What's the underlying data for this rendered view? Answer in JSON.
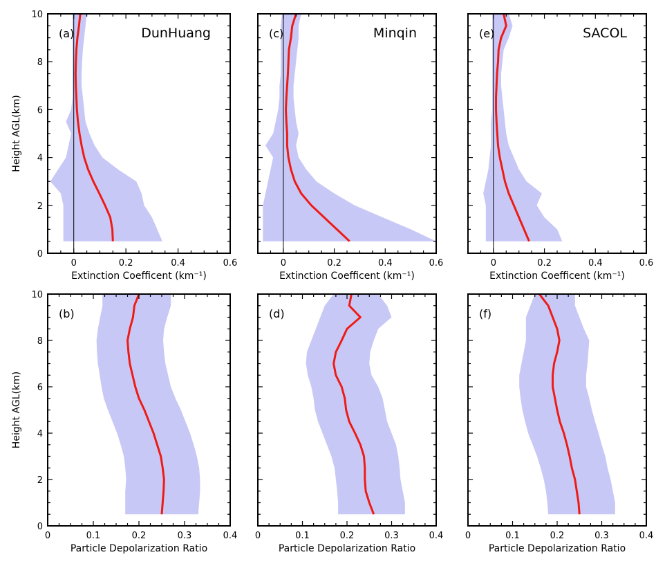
{
  "figure": {
    "colors": {
      "band": "#c8c8f7",
      "mean": "#ee1b14",
      "axis": "#000000",
      "zero_line": "#000000"
    }
  },
  "chart_data": [
    {
      "type": "line",
      "panel": "(a)",
      "site": "DunHuang",
      "xlabel": "Extinction Coefficent (km⁻¹)",
      "ylabel": "Height AGL(km)",
      "xlim": [
        -0.1,
        0.6
      ],
      "ylim": [
        0,
        10
      ],
      "xticks": [
        0,
        0.2,
        0.4,
        0.6
      ],
      "xticklabels": [
        "0",
        "0.2",
        "0.4",
        "0.6"
      ],
      "yticks": [
        0,
        2,
        4,
        6,
        8,
        10
      ],
      "yticklabels": [
        "0",
        "2",
        "4",
        "6",
        "8",
        "10"
      ],
      "zero_line": true,
      "series": [
        {
          "role": "mean",
          "y": [
            0.5,
            1.0,
            1.5,
            2.0,
            2.5,
            3.0,
            3.5,
            4.0,
            4.5,
            5.0,
            5.5,
            6.0,
            6.5,
            7.0,
            7.5,
            8.0,
            8.5,
            9.0,
            9.5,
            10.0
          ],
          "x": [
            0.15,
            0.148,
            0.14,
            0.12,
            0.098,
            0.075,
            0.055,
            0.04,
            0.03,
            0.022,
            0.016,
            0.012,
            0.01,
            0.008,
            0.007,
            0.008,
            0.01,
            0.014,
            0.02,
            0.025
          ]
        },
        {
          "role": "range",
          "y": [
            0.5,
            1.0,
            1.5,
            2.0,
            2.5,
            3.0,
            3.5,
            4.0,
            4.5,
            5.0,
            5.5,
            6.0,
            6.5,
            7.0,
            7.5,
            8.0,
            8.5,
            9.0,
            9.5,
            10.0
          ],
          "low": [
            -0.04,
            -0.04,
            -0.04,
            -0.04,
            -0.05,
            -0.09,
            -0.06,
            -0.03,
            -0.02,
            -0.01,
            -0.03,
            -0.01,
            -0.005,
            -0.005,
            -0.005,
            -0.005,
            -0.005,
            -0.005,
            -0.005,
            -0.005
          ],
          "high": [
            0.34,
            0.32,
            0.3,
            0.27,
            0.26,
            0.24,
            0.17,
            0.11,
            0.08,
            0.06,
            0.045,
            0.04,
            0.035,
            0.03,
            0.03,
            0.032,
            0.035,
            0.04,
            0.045,
            0.05
          ]
        }
      ]
    },
    {
      "type": "line",
      "panel": "(c)",
      "site": "Minqin",
      "xlabel": "Extinction Coefficent (km⁻¹)",
      "ylabel": "",
      "xlim": [
        -0.1,
        0.6
      ],
      "ylim": [
        0,
        10
      ],
      "xticks": [
        0,
        0.2,
        0.4,
        0.6
      ],
      "xticklabels": [
        "0",
        "0.2",
        "0.4",
        "0.6"
      ],
      "yticks": [
        0,
        2,
        4,
        6,
        8,
        10
      ],
      "yticklabels": [],
      "zero_line": true,
      "series": [
        {
          "role": "mean",
          "y": [
            0.5,
            1.0,
            1.5,
            2.0,
            2.5,
            3.0,
            3.5,
            4.0,
            4.5,
            5.0,
            5.5,
            6.0,
            6.5,
            7.0,
            7.5,
            8.0,
            8.5,
            9.0,
            9.5,
            10.0
          ],
          "x": [
            0.26,
            0.21,
            0.16,
            0.11,
            0.07,
            0.045,
            0.03,
            0.02,
            0.015,
            0.015,
            0.012,
            0.01,
            0.012,
            0.015,
            0.018,
            0.02,
            0.022,
            0.03,
            0.035,
            0.05
          ]
        },
        {
          "role": "range",
          "y": [
            0.5,
            1.0,
            1.5,
            2.0,
            2.5,
            3.0,
            3.5,
            4.0,
            4.5,
            5.0,
            5.5,
            6.0,
            6.5,
            7.0,
            7.5,
            8.0,
            8.5,
            9.0,
            9.5,
            10.0
          ],
          "low": [
            -0.08,
            -0.08,
            -0.08,
            -0.08,
            -0.07,
            -0.06,
            -0.05,
            -0.04,
            -0.07,
            -0.04,
            -0.03,
            -0.02,
            -0.015,
            -0.015,
            -0.01,
            -0.01,
            -0.01,
            -0.01,
            -0.01,
            -0.005
          ],
          "high": [
            0.6,
            0.5,
            0.39,
            0.28,
            0.2,
            0.13,
            0.09,
            0.06,
            0.05,
            0.06,
            0.05,
            0.045,
            0.04,
            0.04,
            0.045,
            0.05,
            0.055,
            0.06,
            0.06,
            0.07
          ]
        }
      ]
    },
    {
      "type": "line",
      "panel": "(e)",
      "site": "SACOL",
      "xlabel": "Extinction Coefficent (km⁻¹)",
      "ylabel": "",
      "xlim": [
        -0.1,
        0.6
      ],
      "ylim": [
        0,
        10
      ],
      "xticks": [
        0,
        0.2,
        0.4,
        0.6
      ],
      "xticklabels": [
        "0",
        "0.2",
        "0.4",
        "0.6"
      ],
      "yticks": [
        0,
        2,
        4,
        6,
        8,
        10
      ],
      "yticklabels": [],
      "zero_line": true,
      "series": [
        {
          "role": "mean",
          "y": [
            0.5,
            1.0,
            1.5,
            2.0,
            2.5,
            3.0,
            3.5,
            4.0,
            4.5,
            5.0,
            5.5,
            6.0,
            6.5,
            7.0,
            7.5,
            8.0,
            8.5,
            9.0,
            9.5,
            10.0
          ],
          "x": [
            0.14,
            0.12,
            0.1,
            0.08,
            0.06,
            0.045,
            0.035,
            0.025,
            0.018,
            0.015,
            0.012,
            0.01,
            0.01,
            0.012,
            0.014,
            0.018,
            0.02,
            0.03,
            0.05,
            0.04
          ]
        },
        {
          "role": "range",
          "y": [
            0.5,
            1.0,
            1.5,
            2.0,
            2.5,
            3.0,
            3.5,
            4.0,
            4.5,
            5.0,
            5.5,
            6.0,
            6.5,
            7.0,
            7.5,
            8.0,
            8.5,
            9.0,
            9.5,
            10.0
          ],
          "low": [
            -0.03,
            -0.03,
            -0.03,
            -0.03,
            -0.04,
            -0.03,
            -0.02,
            -0.015,
            -0.01,
            -0.01,
            -0.01,
            -0.005,
            -0.005,
            -0.005,
            -0.005,
            -0.005,
            -0.005,
            -0.005,
            -0.005,
            -0.005
          ],
          "high": [
            0.27,
            0.25,
            0.2,
            0.17,
            0.19,
            0.13,
            0.1,
            0.08,
            0.06,
            0.05,
            0.045,
            0.04,
            0.035,
            0.03,
            0.03,
            0.035,
            0.04,
            0.06,
            0.075,
            0.06
          ]
        }
      ]
    },
    {
      "type": "line",
      "panel": "(b)",
      "site": "",
      "xlabel": "Particle Depolarization Ratio",
      "ylabel": "Height AGL(km)",
      "xlim": [
        0,
        0.4
      ],
      "ylim": [
        0,
        10
      ],
      "xticks": [
        0,
        0.1,
        0.2,
        0.3,
        0.4
      ],
      "xticklabels": [
        "0",
        "0.1",
        "0.2",
        "0.3",
        "0.4"
      ],
      "yticks": [
        0,
        2,
        4,
        6,
        8,
        10
      ],
      "yticklabels": [
        "0",
        "2",
        "4",
        "6",
        "8",
        "10"
      ],
      "zero_line": false,
      "series": [
        {
          "role": "mean",
          "y": [
            0.5,
            1.0,
            1.5,
            2.0,
            2.5,
            3.0,
            3.5,
            4.0,
            4.5,
            5.0,
            5.5,
            6.0,
            6.5,
            7.0,
            7.5,
            8.0,
            8.5,
            9.0,
            9.5,
            10.0
          ],
          "x": [
            0.25,
            0.252,
            0.254,
            0.255,
            0.252,
            0.248,
            0.24,
            0.232,
            0.222,
            0.212,
            0.2,
            0.192,
            0.186,
            0.18,
            0.177,
            0.175,
            0.18,
            0.187,
            0.19,
            0.2
          ]
        },
        {
          "role": "range",
          "y": [
            0.5,
            1.0,
            1.5,
            2.0,
            2.5,
            3.0,
            3.5,
            4.0,
            4.5,
            5.0,
            5.5,
            6.0,
            6.5,
            7.0,
            7.5,
            8.0,
            8.5,
            9.0,
            9.5,
            10.0
          ],
          "low": [
            0.17,
            0.17,
            0.17,
            0.172,
            0.17,
            0.167,
            0.16,
            0.152,
            0.142,
            0.132,
            0.123,
            0.118,
            0.114,
            0.11,
            0.108,
            0.107,
            0.11,
            0.115,
            0.12,
            0.12
          ],
          "high": [
            0.33,
            0.332,
            0.334,
            0.334,
            0.332,
            0.327,
            0.32,
            0.312,
            0.302,
            0.292,
            0.28,
            0.27,
            0.264,
            0.258,
            0.255,
            0.253,
            0.255,
            0.262,
            0.27,
            0.27
          ]
        }
      ]
    },
    {
      "type": "line",
      "panel": "(d)",
      "site": "",
      "xlabel": "Particle Depolarization Ratio",
      "ylabel": "",
      "xlim": [
        0,
        0.4
      ],
      "ylim": [
        0,
        10
      ],
      "xticks": [
        0,
        0.1,
        0.2,
        0.3,
        0.4
      ],
      "xticklabels": [
        "0",
        "0.1",
        "0.2",
        "0.3",
        "0.4"
      ],
      "yticks": [
        0,
        2,
        4,
        6,
        8,
        10
      ],
      "yticklabels": [],
      "zero_line": false,
      "series": [
        {
          "role": "mean",
          "y": [
            0.5,
            1.0,
            1.5,
            2.0,
            2.5,
            3.0,
            3.5,
            4.0,
            4.5,
            5.0,
            5.5,
            6.0,
            6.5,
            7.0,
            7.5,
            8.0,
            8.5,
            9.0,
            9.5,
            10.0
          ],
          "x": [
            0.26,
            0.25,
            0.242,
            0.24,
            0.24,
            0.238,
            0.23,
            0.218,
            0.205,
            0.198,
            0.195,
            0.188,
            0.175,
            0.17,
            0.175,
            0.188,
            0.2,
            0.23,
            0.205,
            0.21
          ]
        },
        {
          "role": "range",
          "y": [
            0.5,
            1.0,
            1.5,
            2.0,
            2.5,
            3.0,
            3.5,
            4.0,
            4.5,
            5.0,
            5.5,
            6.0,
            6.5,
            7.0,
            7.5,
            8.0,
            8.5,
            9.0,
            9.5,
            10.0
          ],
          "low": [
            0.18,
            0.18,
            0.178,
            0.175,
            0.172,
            0.165,
            0.155,
            0.145,
            0.135,
            0.128,
            0.125,
            0.12,
            0.112,
            0.108,
            0.11,
            0.12,
            0.13,
            0.14,
            0.15,
            0.17
          ],
          "high": [
            0.33,
            0.33,
            0.325,
            0.32,
            0.318,
            0.315,
            0.31,
            0.3,
            0.29,
            0.285,
            0.28,
            0.27,
            0.255,
            0.25,
            0.252,
            0.26,
            0.27,
            0.3,
            0.29,
            0.27
          ]
        }
      ]
    },
    {
      "type": "line",
      "panel": "(f)",
      "site": "",
      "xlabel": "Particle Depolarization Ratio",
      "ylabel": "",
      "xlim": [
        0,
        0.4
      ],
      "ylim": [
        0,
        10
      ],
      "xticks": [
        0,
        0.1,
        0.2,
        0.3,
        0.4
      ],
      "xticklabels": [
        "0",
        "0.1",
        "0.2",
        "0.3",
        "0.4"
      ],
      "yticks": [
        0,
        2,
        4,
        6,
        8,
        10
      ],
      "yticklabels": [],
      "zero_line": false,
      "series": [
        {
          "role": "mean",
          "y": [
            0.5,
            1.0,
            1.5,
            2.0,
            2.5,
            3.0,
            3.5,
            4.0,
            4.5,
            5.0,
            5.5,
            6.0,
            6.5,
            7.0,
            7.5,
            8.0,
            8.5,
            9.0,
            9.5,
            10.0
          ],
          "x": [
            0.25,
            0.248,
            0.244,
            0.24,
            0.233,
            0.228,
            0.222,
            0.215,
            0.206,
            0.2,
            0.195,
            0.19,
            0.19,
            0.193,
            0.2,
            0.205,
            0.2,
            0.19,
            0.18,
            0.16
          ]
        },
        {
          "role": "range",
          "y": [
            0.5,
            1.0,
            1.5,
            2.0,
            2.5,
            3.0,
            3.5,
            4.0,
            4.5,
            5.0,
            5.5,
            6.0,
            6.5,
            7.0,
            7.5,
            8.0,
            8.5,
            9.0,
            9.5,
            10.0
          ],
          "low": [
            0.18,
            0.178,
            0.175,
            0.17,
            0.163,
            0.155,
            0.145,
            0.135,
            0.128,
            0.122,
            0.118,
            0.115,
            0.115,
            0.12,
            0.125,
            0.13,
            0.13,
            0.13,
            0.14,
            0.15
          ],
          "high": [
            0.33,
            0.33,
            0.325,
            0.32,
            0.313,
            0.308,
            0.3,
            0.293,
            0.285,
            0.278,
            0.272,
            0.265,
            0.265,
            0.268,
            0.27,
            0.272,
            0.26,
            0.25,
            0.24,
            0.24
          ]
        }
      ]
    }
  ]
}
